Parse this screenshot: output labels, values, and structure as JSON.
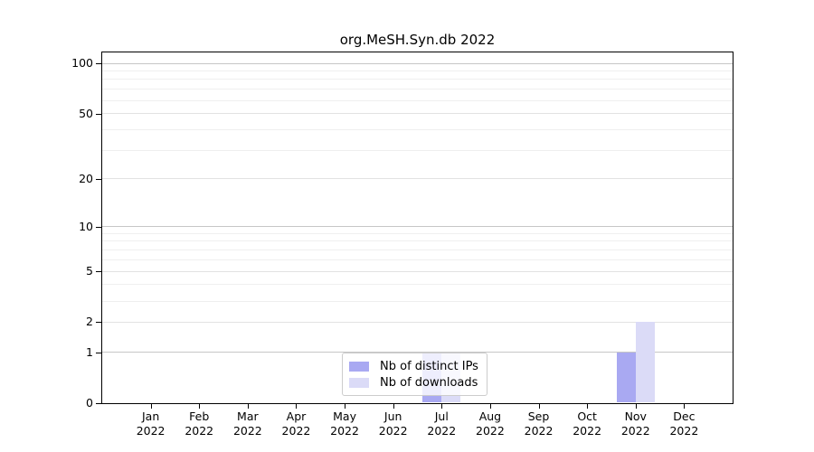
{
  "title": "org.MeSH.Syn.db 2022",
  "legend": {
    "items": [
      {
        "label": "Nb of distinct IPs",
        "color": "#a9a9f2"
      },
      {
        "label": "Nb of downloads",
        "color": "#dbdbf7"
      }
    ]
  },
  "chart_data": {
    "type": "bar",
    "title": "org.MeSH.Syn.db 2022",
    "categories": [
      "Jan 2022",
      "Feb 2022",
      "Mar 2022",
      "Apr 2022",
      "May 2022",
      "Jun 2022",
      "Jul 2022",
      "Aug 2022",
      "Sep 2022",
      "Oct 2022",
      "Nov 2022",
      "Dec 2022"
    ],
    "x_tick_months": [
      "Jan",
      "Feb",
      "Mar",
      "Apr",
      "May",
      "Jun",
      "Jul",
      "Aug",
      "Sep",
      "Oct",
      "Nov",
      "Dec"
    ],
    "x_tick_year": "2022",
    "series": [
      {
        "name": "Nb of distinct IPs",
        "color": "#a9a9f2",
        "values": [
          0,
          0,
          0,
          0,
          0,
          0,
          1,
          0,
          0,
          0,
          1,
          0
        ]
      },
      {
        "name": "Nb of downloads",
        "color": "#dbdbf7",
        "values": [
          0,
          0,
          0,
          0,
          0,
          0,
          1,
          0,
          0,
          0,
          2,
          0
        ]
      }
    ],
    "yscale": "log1p",
    "ylim": [
      0,
      117
    ],
    "yticks": [
      0,
      1,
      2,
      5,
      10,
      20,
      50,
      100
    ],
    "gridlines": {
      "major": [
        1,
        10,
        100
      ],
      "mid": [
        2,
        5,
        20,
        50
      ],
      "minor": [
        3,
        4,
        6,
        7,
        8,
        9,
        30,
        40,
        60,
        70,
        80,
        90
      ],
      "major_color": "#c6c6c6",
      "mid_color": "#e2e2e2",
      "minor_color": "#efefef"
    },
    "legend_position": "bottom-center",
    "grid": true
  }
}
